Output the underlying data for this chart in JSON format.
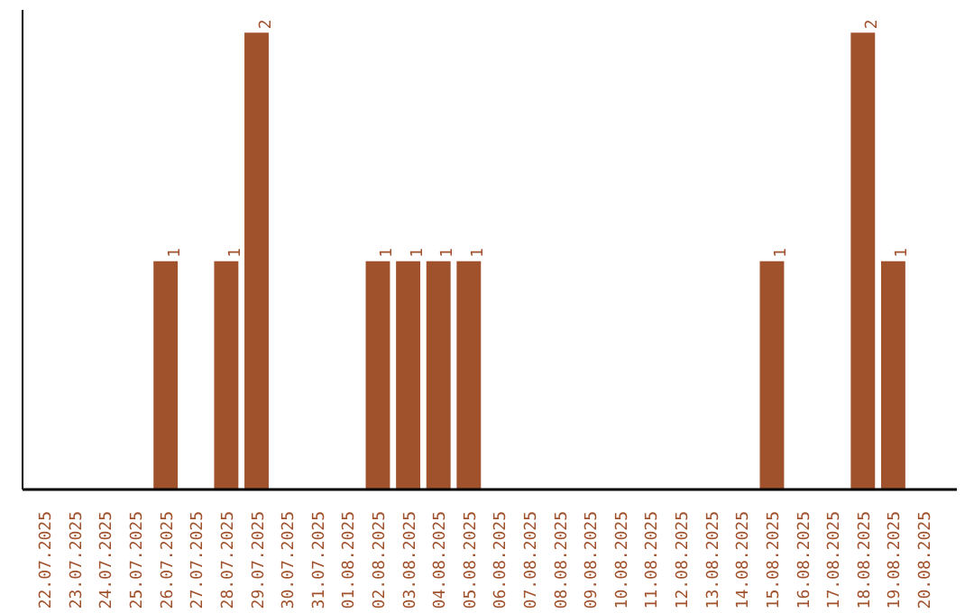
{
  "chart_data": {
    "type": "bar",
    "categories": [
      "22.07.2025",
      "23.07.2025",
      "24.07.2025",
      "25.07.2025",
      "26.07.2025",
      "27.07.2025",
      "28.07.2025",
      "29.07.2025",
      "30.07.2025",
      "31.07.2025",
      "01.08.2025",
      "02.08.2025",
      "03.08.2025",
      "04.08.2025",
      "05.08.2025",
      "06.08.2025",
      "07.08.2025",
      "08.08.2025",
      "09.08.2025",
      "10.08.2025",
      "11.08.2025",
      "12.08.2025",
      "13.08.2025",
      "14.08.2025",
      "15.08.2025",
      "16.08.2025",
      "17.08.2025",
      "18.08.2025",
      "19.08.2025",
      "20.08.2025"
    ],
    "values": [
      0,
      0,
      0,
      0,
      1,
      0,
      1,
      2,
      0,
      0,
      0,
      1,
      1,
      1,
      1,
      0,
      0,
      0,
      0,
      0,
      0,
      0,
      0,
      0,
      1,
      0,
      0,
      2,
      1,
      0
    ],
    "value_labels": [
      null,
      null,
      null,
      null,
      "1",
      null,
      "1",
      "2",
      null,
      null,
      null,
      "1",
      "1",
      "1",
      "1",
      null,
      null,
      null,
      null,
      null,
      null,
      null,
      null,
      null,
      "1",
      null,
      null,
      "2",
      "1",
      null
    ],
    "color": "#a0522d",
    "ylim": [
      0,
      2.1
    ],
    "tick_labels": "x",
    "grid": false
  }
}
